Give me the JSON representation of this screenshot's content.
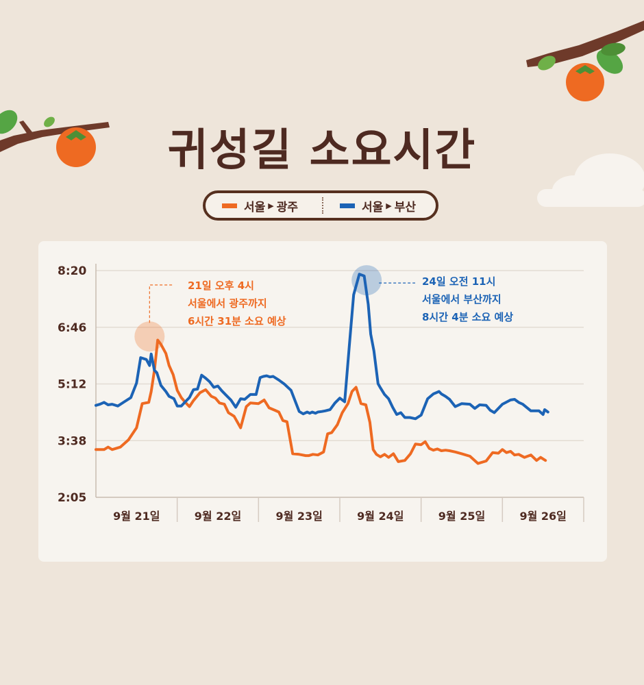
{
  "title": "귀성길 소요시간",
  "legend": {
    "arrow": "▶",
    "seoul_gwangju": {
      "from": "서울",
      "to": "광주",
      "color": "#ee6a22"
    },
    "seoul_busan": {
      "from": "서울",
      "to": "부산",
      "color": "#1c63b5"
    }
  },
  "annotations": {
    "gwangju": {
      "lines": [
        "21일 오후 4시",
        "서울에서 광주까지",
        "6시간 31분 소요 예상"
      ],
      "color": "#ee6a22"
    },
    "busan": {
      "lines": [
        "24일 오전 11시",
        "서울에서 부산까지",
        "8시간 4분 소요 예상"
      ],
      "color": "#1c63b5"
    }
  },
  "chart_data": {
    "type": "line",
    "title": "귀성길 소요시간",
    "y_ticks": [
      "8:20",
      "6:46",
      "5:12",
      "3:38",
      "2:05"
    ],
    "ylim": [
      125,
      500
    ],
    "x_categories": [
      "9월 21일",
      "9월 22일",
      "9월 23일",
      "9월 24일",
      "9월 25일",
      "9월 26일"
    ],
    "xlim": [
      0,
      6
    ],
    "grid": true,
    "series": [
      {
        "name": "서울 ▶ 광주",
        "color": "#ee6a22",
        "x": [
          0.0,
          0.1,
          0.15,
          0.2,
          0.3,
          0.4,
          0.5,
          0.57,
          0.65,
          0.68,
          0.72,
          0.76,
          0.8,
          0.86,
          0.9,
          0.95,
          1.0,
          1.05,
          1.1,
          1.15,
          1.2,
          1.28,
          1.35,
          1.42,
          1.47,
          1.52,
          1.58,
          1.63,
          1.7,
          1.78,
          1.85,
          1.9,
          2.0,
          2.07,
          2.13,
          2.2,
          2.25,
          2.3,
          2.35,
          2.42,
          2.5,
          2.58,
          2.62,
          2.67,
          2.73,
          2.8,
          2.85,
          2.9,
          2.97,
          3.03,
          3.1,
          3.15,
          3.2,
          3.26,
          3.32,
          3.37,
          3.41,
          3.45,
          3.5,
          3.55,
          3.6,
          3.66,
          3.72,
          3.8,
          3.87,
          3.93,
          4.0,
          4.05,
          4.1,
          4.15,
          4.2,
          4.25,
          4.3,
          4.35,
          4.42,
          4.5,
          4.6,
          4.7,
          4.8,
          4.88,
          4.95,
          5.0,
          5.05,
          5.1,
          5.15,
          5.2,
          5.27,
          5.35,
          5.42,
          5.47,
          5.53
        ],
        "values": [
          204,
          204,
          208,
          204,
          208,
          220,
          240,
          280,
          282,
          300,
          335,
          385,
          378,
          363,
          343,
          328,
          302,
          290,
          282,
          275,
          285,
          298,
          303,
          292,
          289,
          281,
          279,
          265,
          259,
          240,
          275,
          281,
          280,
          286,
          273,
          269,
          266,
          252,
          250,
          197,
          196,
          194,
          194,
          196,
          195,
          200,
          230,
          232,
          245,
          265,
          280,
          300,
          307,
          280,
          278,
          249,
          204,
          196,
          192,
          196,
          191,
          197,
          184,
          186,
          197,
          213,
          212,
          217,
          206,
          203,
          205,
          202,
          203,
          202,
          200,
          197,
          193,
          181,
          185,
          199,
          198,
          204,
          199,
          201,
          195,
          196,
          191,
          195,
          186,
          191,
          186
        ]
      },
      {
        "name": "서울 ▶ 부산",
        "color": "#1c63b5",
        "x": [
          0.0,
          0.05,
          0.1,
          0.15,
          0.2,
          0.27,
          0.35,
          0.43,
          0.5,
          0.55,
          0.62,
          0.66,
          0.68,
          0.72,
          0.75,
          0.8,
          0.86,
          0.9,
          0.96,
          1.0,
          1.05,
          1.1,
          1.15,
          1.2,
          1.25,
          1.3,
          1.35,
          1.4,
          1.45,
          1.5,
          1.55,
          1.6,
          1.66,
          1.72,
          1.78,
          1.83,
          1.9,
          1.97,
          2.02,
          2.06,
          2.1,
          2.14,
          2.18,
          2.25,
          2.32,
          2.4,
          2.5,
          2.55,
          2.6,
          2.63,
          2.66,
          2.7,
          2.73,
          2.78,
          2.82,
          2.88,
          2.94,
          3.0,
          3.06,
          3.12,
          3.17,
          3.24,
          3.3,
          3.35,
          3.38,
          3.42,
          3.47,
          3.5,
          3.55,
          3.6,
          3.65,
          3.7,
          3.75,
          3.8,
          3.86,
          3.93,
          4.0,
          4.08,
          4.15,
          4.22,
          4.25,
          4.3,
          4.35,
          4.42,
          4.5,
          4.6,
          4.66,
          4.72,
          4.8,
          4.85,
          4.9,
          5.0,
          5.1,
          5.15,
          5.2,
          5.25,
          5.35,
          5.45,
          5.5,
          5.52,
          5.56
        ],
        "values": [
          277,
          279,
          282,
          278,
          279,
          276,
          283,
          290,
          314,
          356,
          353,
          343,
          362,
          335,
          331,
          310,
          300,
          292,
          288,
          276,
          276,
          283,
          290,
          303,
          304,
          327,
          322,
          316,
          307,
          309,
          301,
          294,
          286,
          274,
          288,
          287,
          295,
          295,
          323,
          325,
          326,
          324,
          325,
          319,
          312,
          302,
          267,
          263,
          266,
          264,
          266,
          264,
          266,
          267,
          268,
          270,
          281,
          289,
          283,
          380,
          460,
          494,
          491,
          444,
          395,
          367,
          313,
          306,
          295,
          288,
          274,
          262,
          265,
          257,
          257,
          255,
          261,
          288,
          296,
          300,
          296,
          292,
          287,
          275,
          280,
          279,
          272,
          278,
          277,
          269,
          265,
          279,
          286,
          287,
          282,
          279,
          268,
          268,
          262,
          270,
          266
        ]
      }
    ],
    "highlights": [
      {
        "series": "서울 ▶ 광주",
        "x": 0.66,
        "y": 391
      },
      {
        "series": "서울 ▶ 부산",
        "x": 3.33,
        "y": 484
      }
    ]
  }
}
